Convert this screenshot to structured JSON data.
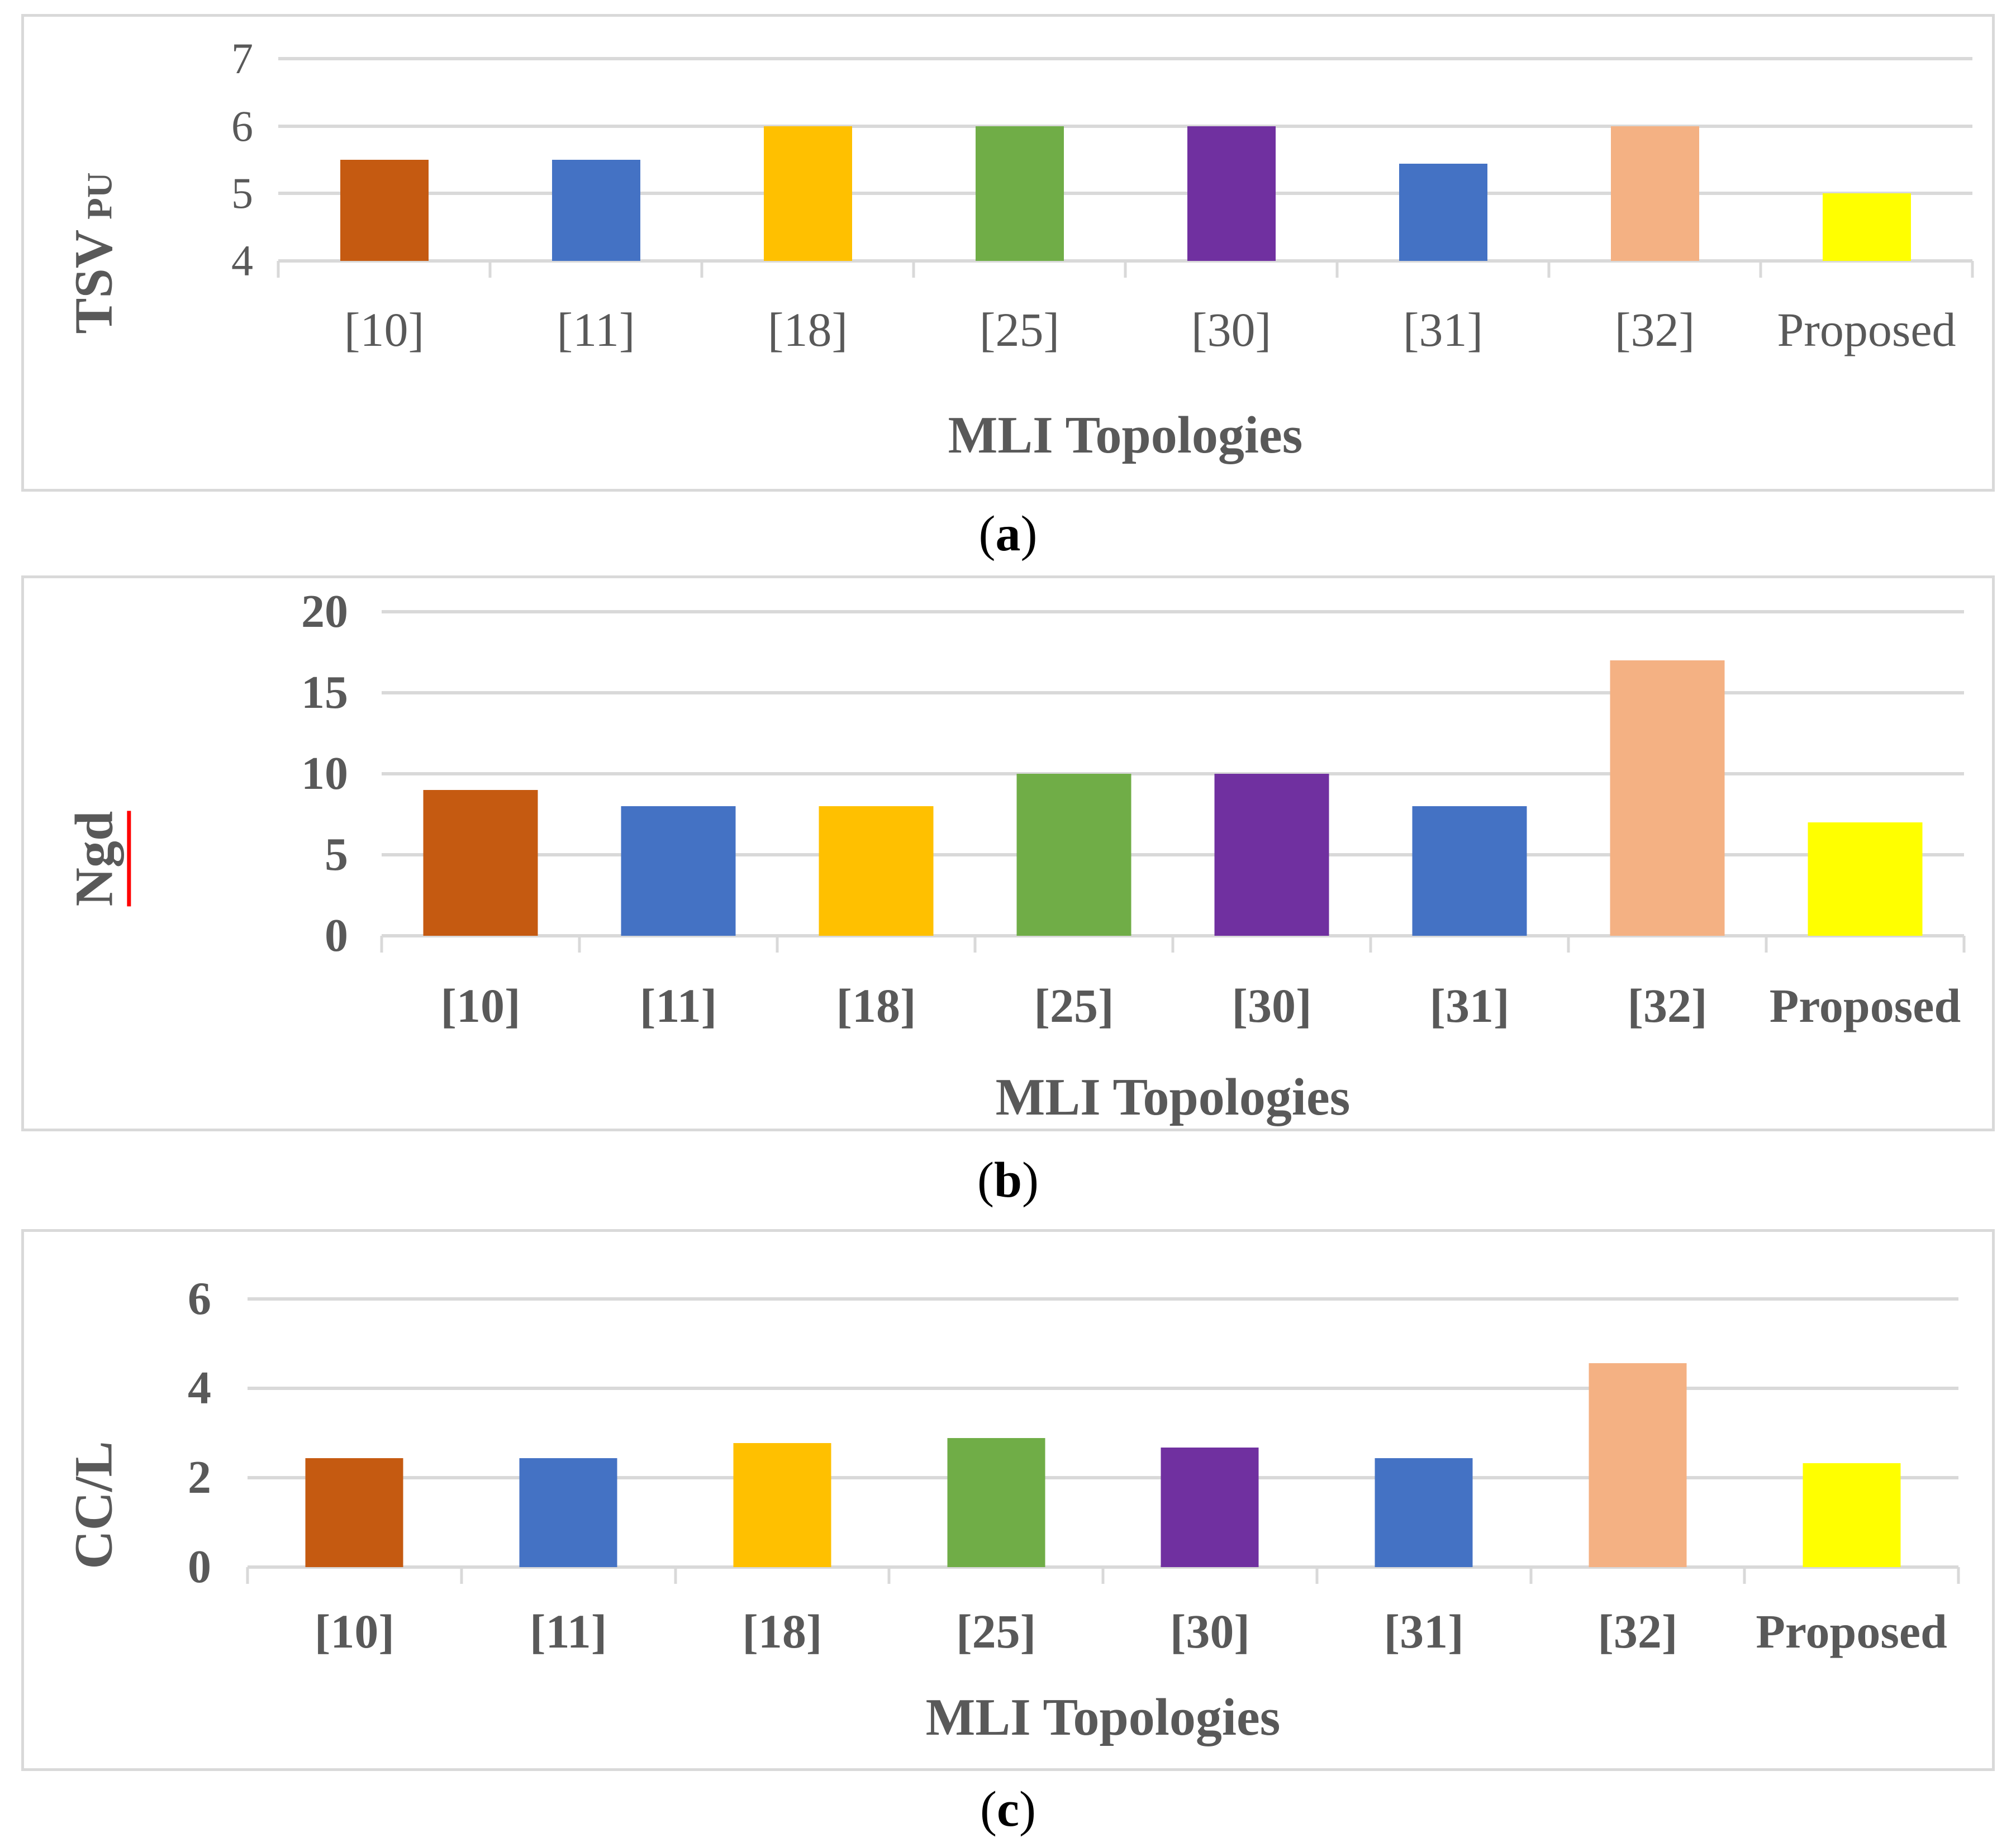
{
  "figure": {
    "captions": [
      {
        "open": "(",
        "letter": "a",
        "close": ")"
      },
      {
        "open": "(",
        "letter": "b",
        "close": ")"
      },
      {
        "open": "(",
        "letter": "c",
        "close": ")"
      }
    ],
    "colors": {
      "panel_border": "#D9D9D9",
      "gridline": "#D9D9D9",
      "chart_text": "#595959",
      "caption_text": "#000000",
      "spellcheck_underline": "#FF0000"
    }
  },
  "chart_data": [
    {
      "type": "bar",
      "title": "",
      "ylabel": "TSV",
      "ylabel_sub": "PU",
      "xlabel": "MLI Topologies",
      "categories": [
        "[10]",
        "[11]",
        "[18]",
        "[25]",
        "[30]",
        "[31]",
        "[32]",
        "Proposed"
      ],
      "values": [
        5.5,
        5.5,
        6,
        6,
        6,
        5.44,
        6,
        5
      ],
      "ylim": [
        4,
        7
      ],
      "yticks": [
        4,
        5,
        6,
        7
      ],
      "grid": true,
      "legend": "none",
      "bar_colors": [
        "#C55A11",
        "#4472C4",
        "#FFC000",
        "#70AD47",
        "#7030A0",
        "#4472C4",
        "#F4B183",
        "#FFFF00"
      ]
    },
    {
      "type": "bar",
      "title": "",
      "ylabel": "Ngd",
      "ylabel_sub": "",
      "xlabel": "MLI Topologies",
      "categories": [
        "[10]",
        "[11]",
        "[18]",
        "[25]",
        "[30]",
        "[31]",
        "[32]",
        "Proposed"
      ],
      "values": [
        9,
        8,
        8,
        10,
        10,
        8,
        17,
        7
      ],
      "ylim": [
        0,
        20
      ],
      "yticks": [
        0,
        5,
        10,
        15,
        20
      ],
      "grid": true,
      "legend": "none",
      "bar_colors": [
        "#C55A11",
        "#4472C4",
        "#FFC000",
        "#70AD47",
        "#7030A0",
        "#4472C4",
        "#F4B183",
        "#FFFF00"
      ]
    },
    {
      "type": "bar",
      "title": "",
      "ylabel": "CC/L",
      "ylabel_sub": "",
      "xlabel": "MLI Topologies",
      "categories": [
        "[10]",
        "[11]",
        "[18]",
        "[25]",
        "[30]",
        "[31]",
        "[32]",
        "Proposed"
      ],
      "values": [
        2.44,
        2.44,
        2.78,
        2.89,
        2.67,
        2.44,
        4.56,
        2.33
      ],
      "ylim": [
        0,
        6
      ],
      "yticks": [
        0,
        2,
        4,
        6
      ],
      "grid": true,
      "legend": "none",
      "bar_colors": [
        "#C55A11",
        "#4472C4",
        "#FFC000",
        "#70AD47",
        "#7030A0",
        "#4472C4",
        "#F4B183",
        "#FFFF00"
      ]
    }
  ]
}
